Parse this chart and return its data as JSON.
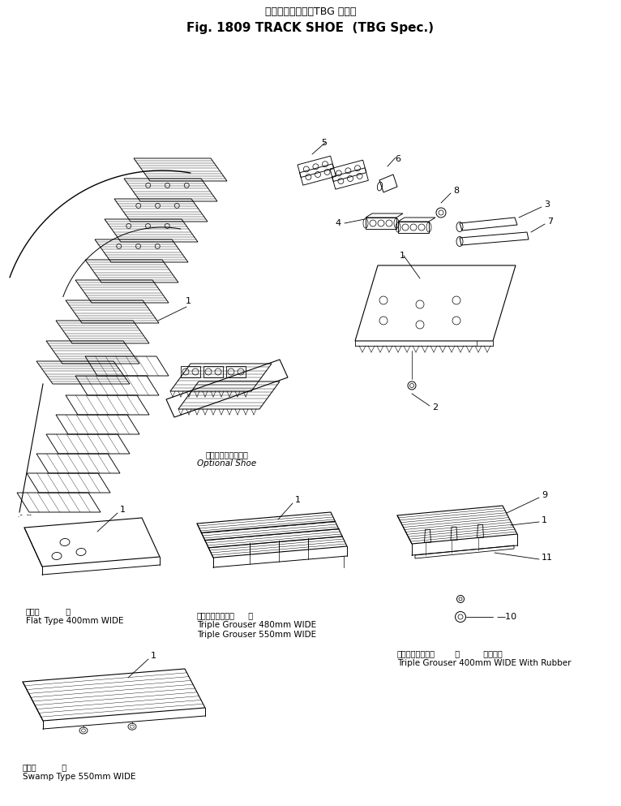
{
  "title_jp": "トラックシュー（TBG 仕様）",
  "title_en": "Fig. 1809 TRACK SHOE  (TBG Spec.)",
  "bg_color": "#ffffff",
  "optional_shoe_jp": "オプショナルシュー",
  "optional_shoe_en": "Optional Shoe",
  "flat_jp": "平滑用",
  "flat_width": "幅",
  "flat_en": "Flat Type 400mm WIDE",
  "triple1_jp": "トリプルグローサ",
  "triple1_width": "幅",
  "triple1_en1": "Triple Grouser 480mm WIDE",
  "triple1_en2": "Triple Grouser 550mm WIDE",
  "triple2_jp": "トリプルグローサ",
  "triple2_width": "幅",
  "triple2_rubber_jp": "ラバー付",
  "triple2_en": "Triple Grouser 400mm WIDE With Rubber",
  "swamp_jp": "湿地用",
  "swamp_width": "幅",
  "swamp_en": "Swamp Type 550mm WIDE"
}
